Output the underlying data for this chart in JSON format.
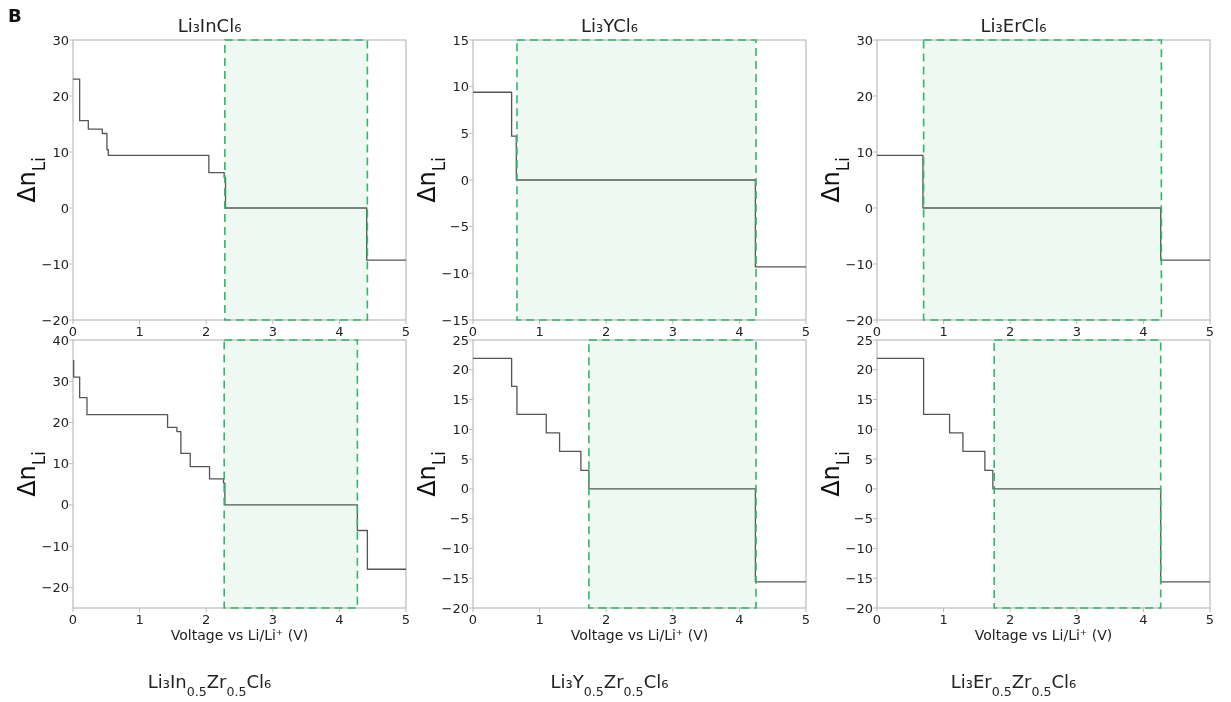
{
  "chart_data": [
    {
      "type": "step",
      "title": "Li₃InCl₆",
      "ylabel": "Δn$_{Li}$",
      "annotations": [
        "B"
      ],
      "xlim": [
        0,
        5
      ],
      "xticks": [
        0,
        1,
        2,
        3,
        4,
        5
      ],
      "ylim": [
        -20,
        30
      ],
      "yticks": [
        -20,
        -10,
        0,
        10,
        20,
        30
      ],
      "series": [
        {
          "color": "#555555",
          "x": [
            0,
            0.1,
            0.23,
            0.44,
            0.51,
            0.53,
            2.04,
            2.27,
            2.29,
            4.41,
            5
          ],
          "values": [
            23,
            15.6,
            14.1,
            13.3,
            10.4,
            9.4,
            6.3,
            5.4,
            0,
            -9.3,
            -9.3
          ]
        }
      ],
      "bands": [
        {
          "axis": "x",
          "from": 2.28,
          "to": 4.42,
          "color": "#33b56a"
        }
      ]
    },
    {
      "type": "step",
      "title": "Li₃YCl₆",
      "ylabel": "Δn$_{Li}$",
      "xlim": [
        0,
        5
      ],
      "xticks": [
        0,
        1,
        2,
        3,
        4,
        5
      ],
      "ylim": [
        -15,
        15
      ],
      "yticks": [
        -15,
        -10,
        -5,
        0,
        5,
        10,
        15
      ],
      "series": [
        {
          "color": "#555555",
          "x": [
            0,
            0.58,
            0.65,
            4.24,
            5
          ],
          "values": [
            9.4,
            4.7,
            0,
            -9.3,
            -9.3
          ]
        }
      ],
      "bands": [
        {
          "axis": "x",
          "from": 0.66,
          "to": 4.25,
          "color": "#33b56a"
        }
      ]
    },
    {
      "type": "step",
      "title": "Li₃ErCl₆",
      "ylabel": "Δn$_{Li}$",
      "xlim": [
        0,
        5
      ],
      "xticks": [
        0,
        1,
        2,
        3,
        4,
        5
      ],
      "ylim": [
        -20,
        30
      ],
      "yticks": [
        -20,
        -10,
        0,
        10,
        20,
        30
      ],
      "series": [
        {
          "color": "#555555",
          "x": [
            0,
            0.69,
            4.26,
            5
          ],
          "values": [
            9.4,
            0,
            -9.3,
            -9.3
          ]
        }
      ],
      "bands": [
        {
          "axis": "x",
          "from": 0.7,
          "to": 4.27,
          "color": "#33b56a"
        }
      ]
    },
    {
      "type": "step",
      "title": "Li₃In$_{0.5}$Zr$_{0.5}$Cl₆",
      "xlabel": "Voltage vs Li/Li⁺ (V)",
      "ylabel": "Δn$_{Li}$",
      "xlim": [
        0,
        5
      ],
      "xticks": [
        0,
        1,
        2,
        3,
        4,
        5
      ],
      "ylim": [
        -25,
        40
      ],
      "yticks": [
        -20,
        -10,
        0,
        10,
        20,
        30,
        40
      ],
      "series": [
        {
          "color": "#555555",
          "x": [
            0,
            0.01,
            0.1,
            0.21,
            1.42,
            1.56,
            1.62,
            1.76,
            2.05,
            2.26,
            2.28,
            4.27,
            4.42,
            5
          ],
          "values": [
            35,
            31,
            26,
            21.9,
            18.8,
            17.8,
            12.5,
            9.3,
            6.3,
            5.3,
            0,
            -6.2,
            -15.6,
            -15.6
          ]
        }
      ],
      "bands": [
        {
          "axis": "x",
          "from": 2.27,
          "to": 4.27,
          "color": "#33b56a"
        }
      ]
    },
    {
      "type": "step",
      "title": "Li₃Y$_{0.5}$Zr$_{0.5}$Cl₆",
      "xlabel": "Voltage vs Li/Li⁺ (V)",
      "ylabel": "Δn$_{Li}$",
      "xlim": [
        0,
        5
      ],
      "xticks": [
        0,
        1,
        2,
        3,
        4,
        5
      ],
      "ylim": [
        -20,
        25
      ],
      "yticks": [
        -20,
        -15,
        -10,
        -5,
        0,
        5,
        10,
        15,
        20,
        25
      ],
      "series": [
        {
          "color": "#555555",
          "x": [
            0,
            0.58,
            0.66,
            1.1,
            1.3,
            1.62,
            1.74,
            4.24,
            5
          ],
          "values": [
            21.9,
            17.2,
            12.5,
            9.4,
            6.3,
            3.1,
            0,
            -15.6,
            -15.6
          ]
        }
      ],
      "bands": [
        {
          "axis": "x",
          "from": 1.74,
          "to": 4.25,
          "color": "#33b56a"
        }
      ]
    },
    {
      "type": "step",
      "title": "Li₃Er$_{0.5}$Zr$_{0.5}$Cl₆",
      "xlabel": "Voltage vs Li/Li⁺ (V)",
      "ylabel": "Δn$_{Li}$",
      "xlim": [
        0,
        5
      ],
      "xticks": [
        0,
        1,
        2,
        3,
        4,
        5
      ],
      "ylim": [
        -20,
        25
      ],
      "yticks": [
        -20,
        -15,
        -10,
        -5,
        0,
        5,
        10,
        15,
        20,
        25
      ],
      "series": [
        {
          "color": "#555555",
          "x": [
            0,
            0.7,
            1.09,
            1.29,
            1.62,
            1.74,
            4.26,
            5
          ],
          "values": [
            21.9,
            12.5,
            9.4,
            6.3,
            3.1,
            0,
            -15.6,
            -15.6
          ]
        }
      ],
      "bands": [
        {
          "axis": "x",
          "from": 1.76,
          "to": 4.26,
          "color": "#33b56a"
        }
      ]
    }
  ]
}
